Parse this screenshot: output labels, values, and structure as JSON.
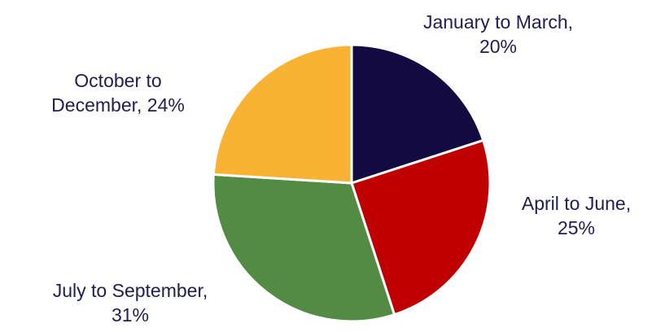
{
  "chart_data": {
    "type": "pie",
    "title": "",
    "slices": [
      {
        "label_lines": [
          "January to March,",
          "20%"
        ],
        "category": "January to March",
        "value": 20,
        "color": "#140a42"
      },
      {
        "label_lines": [
          "April to June,",
          "25%"
        ],
        "category": "April to June",
        "value": 25,
        "color": "#c00000"
      },
      {
        "label_lines": [
          "July to September,",
          "31%"
        ],
        "category": "July to September",
        "value": 31,
        "color": "#538b45"
      },
      {
        "label_lines": [
          "October to",
          "December, 24%"
        ],
        "category": "October to December",
        "value": 24,
        "color": "#f9b233"
      }
    ],
    "legend": "none"
  }
}
